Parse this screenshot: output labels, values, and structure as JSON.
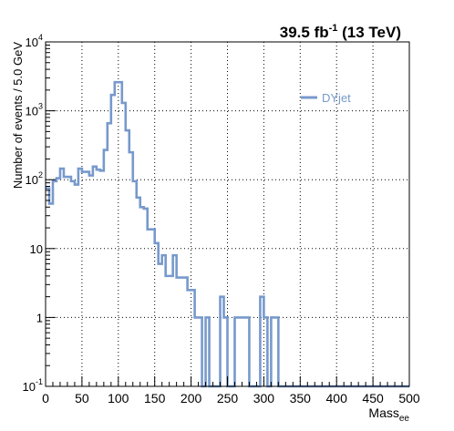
{
  "chart_data": {
    "type": "line",
    "drawstyle": "histogram-step",
    "title": {
      "lumi": "39.5 fb",
      "lumi_exp": "-1",
      "energy": " (13 TeV)"
    },
    "ylabel": "Number of events / 5.0 GeV",
    "xlabel": {
      "base": "Mass",
      "sub": "ee"
    },
    "xlim": [
      0,
      500
    ],
    "ylim": [
      0.1,
      10000
    ],
    "yscale": "log",
    "grid": true,
    "legend": {
      "placement": "top-right",
      "entries": [
        "DYjet"
      ]
    },
    "xticks": [
      {
        "v": 0,
        "label": "0"
      },
      {
        "v": 50,
        "label": "50"
      },
      {
        "v": 100,
        "label": "100"
      },
      {
        "v": 150,
        "label": "150"
      },
      {
        "v": 200,
        "label": "200"
      },
      {
        "v": 250,
        "label": "250"
      },
      {
        "v": 300,
        "label": "300"
      },
      {
        "v": 350,
        "label": "350"
      },
      {
        "v": 400,
        "label": "400"
      },
      {
        "v": 450,
        "label": "450"
      },
      {
        "v": 500,
        "label": "500"
      }
    ],
    "yticks": [
      {
        "v": 0.1,
        "base": "10",
        "exp": "-1"
      },
      {
        "v": 1,
        "base": "1",
        "exp": ""
      },
      {
        "v": 10,
        "base": "10",
        "exp": ""
      },
      {
        "v": 100,
        "base": "10",
        "exp": "2"
      },
      {
        "v": 1000,
        "base": "10",
        "exp": "3"
      },
      {
        "v": 10000,
        "base": "10",
        "exp": "4"
      }
    ],
    "bin_width": 5,
    "series": [
      {
        "name": "DYjet",
        "color": "#7799cc",
        "bin_edges_start": 0,
        "values": [
          75,
          45,
          95,
          105,
          145,
          110,
          110,
          95,
          85,
          145,
          130,
          130,
          115,
          155,
          140,
          135,
          270,
          660,
          1700,
          2600,
          2600,
          1300,
          520,
          250,
          95,
          55,
          40,
          38,
          19,
          19,
          12,
          6,
          8,
          4,
          4,
          8,
          3.8,
          3.8,
          3.8,
          2.5,
          2.5,
          1,
          1,
          0.1,
          1,
          0.1,
          0.1,
          0.1,
          2,
          1,
          0.1,
          0.1,
          1,
          1,
          1,
          1,
          0.1,
          0.1,
          0.1,
          2,
          1,
          0.1,
          1,
          1,
          0.1,
          0.1,
          0.1,
          0.1,
          0.1,
          0.1,
          0.1,
          0.1,
          0.1,
          0.1,
          0.1,
          0.1,
          0.1,
          0.1,
          0.1,
          0.1,
          0.1,
          0.1,
          0.1,
          0.1,
          0.1,
          0.1,
          0.1,
          0.1,
          0.1,
          0.1,
          0.1,
          0.1,
          0.1,
          0.1,
          0.1,
          0.1,
          0.1,
          0.1,
          0.1,
          0.1
        ]
      }
    ]
  }
}
